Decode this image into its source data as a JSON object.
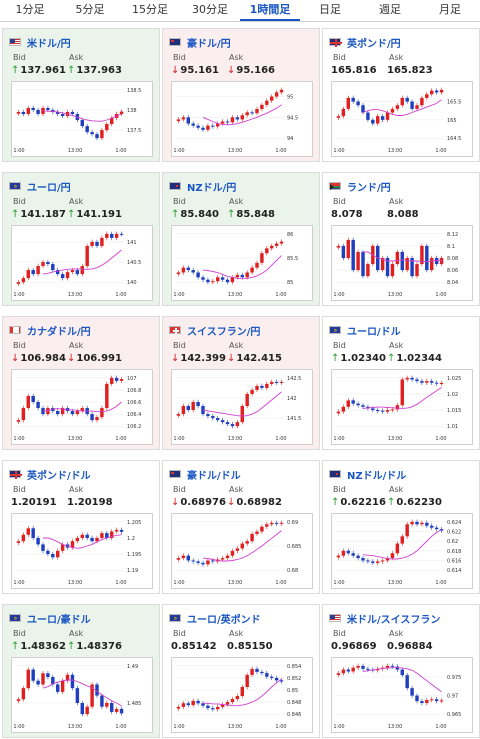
{
  "tabs": [
    "1分足",
    "5分足",
    "15分足",
    "30分足",
    "1時間足",
    "日足",
    "週足",
    "月足"
  ],
  "active_tab": 4,
  "labels": {
    "bid": "Bid",
    "ask": "Ask"
  },
  "colors": {
    "up_bg": "#eaf4ea",
    "down_bg": "#fbeeee",
    "link": "#1a56c4",
    "candle_up": "#e02020",
    "candle_down": "#1f3fbf",
    "ma": "#d040d0"
  },
  "cards": [
    {
      "pair": "米ドル/円",
      "flag": "us-flag-icon",
      "trend": "up",
      "arrow": "up",
      "bid": "137.961",
      "ask": "137.963",
      "yticks": [
        "138.5",
        "138",
        "137.5"
      ],
      "xticks": [
        "1:00",
        "13:00",
        "1:00"
      ],
      "closes": [
        137.95,
        137.9,
        138.05,
        138.0,
        137.9,
        138.05,
        138.0,
        137.95,
        137.9,
        137.85,
        137.95,
        137.9,
        137.75,
        137.6,
        137.45,
        137.4,
        137.3,
        137.5,
        137.65,
        137.8,
        137.9,
        137.96
      ],
      "ma": [
        137.98,
        137.97,
        137.96,
        137.95,
        137.93,
        137.9,
        137.86,
        137.82,
        137.78,
        137.75,
        137.73,
        137.72,
        137.72,
        137.75,
        137.8,
        137.85,
        137.9
      ]
    },
    {
      "pair": "豪ドル/円",
      "flag": "au-flag-icon",
      "trend": "down",
      "arrow": "down",
      "bid": "95.161",
      "ask": "95.166",
      "yticks": [
        "95",
        "94.5",
        "94"
      ],
      "xticks": [
        "1:00",
        "13:00",
        "1:00"
      ],
      "closes": [
        94.45,
        94.5,
        94.35,
        94.3,
        94.25,
        94.2,
        94.3,
        94.28,
        94.35,
        94.4,
        94.38,
        94.5,
        94.45,
        94.55,
        94.62,
        94.6,
        94.7,
        94.8,
        94.9,
        95.0,
        95.1,
        95.16
      ],
      "ma": [
        94.5,
        94.45,
        94.4,
        94.35,
        94.33,
        94.32,
        94.33,
        94.35,
        94.38,
        94.42,
        94.46,
        94.5,
        94.55,
        94.6,
        94.66,
        94.72,
        94.8
      ]
    },
    {
      "pair": "英ポンド/円",
      "flag": "uk-flag-icon",
      "trend": "neutral",
      "arrow": "",
      "bid": "165.816",
      "ask": "165.823",
      "yticks": [
        "165.5",
        "165",
        "164.5"
      ],
      "xticks": [
        "1:00",
        "13:00",
        "1:00"
      ],
      "closes": [
        165.1,
        165.3,
        165.6,
        165.5,
        165.4,
        165.2,
        165.0,
        164.9,
        165.1,
        165.0,
        165.2,
        165.3,
        165.4,
        165.6,
        165.5,
        165.3,
        165.4,
        165.6,
        165.7,
        165.8,
        165.75,
        165.82
      ],
      "ma": [
        165.2,
        165.25,
        165.28,
        165.28,
        165.25,
        165.2,
        165.15,
        165.12,
        165.12,
        165.15,
        165.2,
        165.25,
        165.3,
        165.35,
        165.4,
        165.45,
        165.55
      ]
    },
    {
      "pair": "ユーロ/円",
      "flag": "eu-flag-icon",
      "trend": "up",
      "arrow": "up",
      "bid": "141.187",
      "ask": "141.191",
      "yticks": [
        "141",
        "140.5",
        "140"
      ],
      "xticks": [
        "1:00",
        "13:00",
        "1:00"
      ],
      "closes": [
        140.0,
        140.1,
        140.3,
        140.2,
        140.4,
        140.5,
        140.45,
        140.3,
        140.2,
        140.1,
        140.25,
        140.3,
        140.2,
        140.4,
        140.9,
        141.0,
        140.9,
        141.1,
        141.2,
        141.1,
        141.2,
        141.19
      ],
      "ma": [
        140.2,
        140.22,
        140.25,
        140.28,
        140.3,
        140.32,
        140.33,
        140.33,
        140.32,
        140.32,
        140.33,
        140.36,
        140.42,
        140.5,
        140.6,
        140.7,
        140.8
      ]
    },
    {
      "pair": "NZドル/円",
      "flag": "nz-flag-icon",
      "trend": "up",
      "arrow": "up",
      "bid": "85.840",
      "ask": "85.848",
      "yticks": [
        "86",
        "85.5",
        "85"
      ],
      "xticks": [
        "1:00",
        "13:00",
        "1:00"
      ],
      "closes": [
        85.2,
        85.3,
        85.25,
        85.2,
        85.1,
        85.05,
        85.0,
        85.02,
        85.1,
        85.05,
        85.0,
        85.1,
        85.15,
        85.1,
        85.2,
        85.3,
        85.4,
        85.6,
        85.7,
        85.75,
        85.8,
        85.84
      ],
      "ma": [
        85.25,
        85.24,
        85.22,
        85.2,
        85.16,
        85.12,
        85.1,
        85.08,
        85.07,
        85.08,
        85.1,
        85.13,
        85.18,
        85.25,
        85.35,
        85.45,
        85.55
      ]
    },
    {
      "pair": "ランド/円",
      "flag": "za-flag-icon",
      "trend": "neutral",
      "arrow": "",
      "bid": "8.078",
      "ask": "8.088",
      "yticks": [
        "8.12",
        "8.1",
        "8.08",
        "8.06",
        "8.04"
      ],
      "xticks": [
        "1:00",
        "13:00",
        "1:00"
      ],
      "closes": [
        8.1,
        8.08,
        8.11,
        8.06,
        8.09,
        8.05,
        8.07,
        8.1,
        8.06,
        8.08,
        8.05,
        8.07,
        8.09,
        8.06,
        8.08,
        8.05,
        8.07,
        8.1,
        8.06,
        8.08,
        8.07,
        8.08
      ],
      "ma": [
        8.09,
        8.09,
        8.085,
        8.08,
        8.078,
        8.075,
        8.075,
        8.076,
        8.077,
        8.076,
        8.075,
        8.075,
        8.074,
        8.074,
        8.075,
        8.076,
        8.076
      ]
    },
    {
      "pair": "カナダドル/円",
      "flag": "ca-flag-icon",
      "trend": "down",
      "arrow": "down",
      "bid": "106.984",
      "ask": "106.991",
      "yticks": [
        "107",
        "106.8",
        "106.6",
        "106.4",
        "106.2"
      ],
      "xticks": [
        "1:00",
        "13:00",
        "1:00"
      ],
      "closes": [
        106.3,
        106.5,
        106.7,
        106.6,
        106.5,
        106.4,
        106.5,
        106.45,
        106.4,
        106.5,
        106.45,
        106.4,
        106.45,
        106.5,
        106.4,
        106.3,
        106.35,
        106.5,
        106.9,
        107.0,
        106.95,
        106.98
      ],
      "ma": [
        106.45,
        106.46,
        106.48,
        106.49,
        106.48,
        106.47,
        106.47,
        106.46,
        106.45,
        106.45,
        106.45,
        106.44,
        106.44,
        106.45,
        106.48,
        106.53,
        106.6
      ]
    },
    {
      "pair": "スイスフラン/円",
      "flag": "ch-flag-icon",
      "trend": "down",
      "arrow": "down",
      "bid": "142.399",
      "ask": "142.415",
      "yticks": [
        "142.5",
        "142",
        "141.5"
      ],
      "xticks": [
        "1:00",
        "13:00",
        "1:00"
      ],
      "closes": [
        141.6,
        141.8,
        141.7,
        141.9,
        141.8,
        141.6,
        141.55,
        141.5,
        141.45,
        141.4,
        141.35,
        141.3,
        141.4,
        141.8,
        142.1,
        142.2,
        142.3,
        142.25,
        142.35,
        142.4,
        142.38,
        142.4
      ],
      "ma": [
        141.7,
        141.68,
        141.66,
        141.64,
        141.62,
        141.6,
        141.58,
        141.56,
        141.55,
        141.56,
        141.6,
        141.66,
        141.75,
        141.85,
        141.95,
        142.05,
        142.15
      ]
    },
    {
      "pair": "ユーロ/ドル",
      "flag": "eu-flag-icon",
      "trend": "neutral",
      "arrow": "up",
      "bid": "1.02340",
      "ask": "1.02344",
      "yticks": [
        "1.025",
        "1.02",
        "1.015",
        "1.01"
      ],
      "xticks": [
        "1:00",
        "13:00",
        "1:00"
      ],
      "closes": [
        1.0145,
        1.016,
        1.018,
        1.017,
        1.0165,
        1.016,
        1.0155,
        1.015,
        1.0148,
        1.0145,
        1.015,
        1.0152,
        1.0165,
        1.0245,
        1.025,
        1.0245,
        1.024,
        1.0235,
        1.024,
        1.0235,
        1.0232,
        1.0234
      ],
      "ma": [
        1.0155,
        1.0156,
        1.0158,
        1.0159,
        1.0159,
        1.0158,
        1.0157,
        1.0156,
        1.0155,
        1.0156,
        1.016,
        1.0168,
        1.0178,
        1.019,
        1.02,
        1.021,
        1.022
      ]
    },
    {
      "pair": "英ポンド/ドル",
      "flag": "uk-flag-icon",
      "trend": "neutral",
      "arrow": "",
      "bid": "1.20191",
      "ask": "1.20198",
      "yticks": [
        "1.205",
        "1.2",
        "1.195",
        "1.19"
      ],
      "xticks": [
        "1:00",
        "13:00",
        "1:00"
      ],
      "closes": [
        1.199,
        1.201,
        1.203,
        1.2,
        1.198,
        1.196,
        1.195,
        1.194,
        1.196,
        1.198,
        1.197,
        1.199,
        1.2,
        1.201,
        1.2,
        1.199,
        1.2,
        1.2015,
        1.2,
        1.202,
        1.2025,
        1.2019
      ],
      "ma": [
        1.2,
        1.2,
        1.1995,
        1.1988,
        1.198,
        1.1975,
        1.197,
        1.1968,
        1.197,
        1.1975,
        1.198,
        1.1988,
        1.1995,
        1.2,
        1.2005,
        1.2008,
        1.201
      ]
    },
    {
      "pair": "豪ドル/ドル",
      "flag": "au-flag-icon",
      "trend": "neutral",
      "arrow": "down",
      "bid": "0.68976",
      "ask": "0.68982",
      "yticks": [
        "0.69",
        "0.685",
        "0.68"
      ],
      "xticks": [
        "1:00",
        "13:00",
        "1:00"
      ],
      "closes": [
        0.6825,
        0.683,
        0.682,
        0.6818,
        0.6815,
        0.6812,
        0.682,
        0.6818,
        0.6822,
        0.6825,
        0.683,
        0.684,
        0.6845,
        0.6855,
        0.686,
        0.6875,
        0.688,
        0.689,
        0.6895,
        0.6898,
        0.6896,
        0.6898
      ],
      "ma": [
        0.6825,
        0.6824,
        0.6822,
        0.682,
        0.6819,
        0.6819,
        0.682,
        0.6822,
        0.6825,
        0.683,
        0.6836,
        0.6843,
        0.685,
        0.6858,
        0.6866,
        0.6874,
        0.6882
      ]
    },
    {
      "pair": "NZドル/ドル",
      "flag": "nz-flag-icon",
      "trend": "neutral",
      "arrow": "up",
      "bid": "0.62216",
      "ask": "0.62230",
      "yticks": [
        "0.624",
        "0.622",
        "0.62",
        "0.618",
        "0.616",
        "0.614"
      ],
      "xticks": [
        "1:00",
        "13:00",
        "1:00"
      ],
      "closes": [
        0.617,
        0.618,
        0.6175,
        0.617,
        0.6165,
        0.616,
        0.6158,
        0.6155,
        0.6158,
        0.616,
        0.6165,
        0.6175,
        0.6195,
        0.621,
        0.6235,
        0.624,
        0.6235,
        0.6238,
        0.6232,
        0.6228,
        0.6225,
        0.6222
      ],
      "ma": [
        0.6172,
        0.6171,
        0.617,
        0.6168,
        0.6166,
        0.6164,
        0.6163,
        0.6163,
        0.6165,
        0.6168,
        0.6173,
        0.618,
        0.619,
        0.62,
        0.621,
        0.6218,
        0.6224
      ]
    },
    {
      "pair": "ユーロ/豪ドル",
      "flag": "eu-flag-icon",
      "trend": "up",
      "arrow": "up",
      "bid": "1.48362",
      "ask": "1.48376",
      "yticks": [
        "1.49",
        "1.485"
      ],
      "xticks": [
        "1:00",
        "13:00",
        "1:00"
      ],
      "closes": [
        1.4855,
        1.487,
        1.4895,
        1.488,
        1.4875,
        1.489,
        1.4885,
        1.4875,
        1.4865,
        1.488,
        1.4888,
        1.487,
        1.485,
        1.4835,
        1.4845,
        1.4875,
        1.486,
        1.4845,
        1.485,
        1.4838,
        1.4842,
        1.4836
      ],
      "ma": [
        1.487,
        1.4872,
        1.4876,
        1.4878,
        1.488,
        1.4881,
        1.4881,
        1.4879,
        1.4876,
        1.4873,
        1.487,
        1.4866,
        1.4861,
        1.4857,
        1.4853,
        1.485,
        1.4846
      ]
    },
    {
      "pair": "ユーロ/英ポンド",
      "flag": "eu-flag-icon",
      "trend": "neutral",
      "arrow": "",
      "bid": "0.85142",
      "ask": "0.85150",
      "yticks": [
        "0.854",
        "0.852",
        "0.85",
        "0.848",
        "0.846"
      ],
      "xticks": [
        "1:00",
        "13:00",
        "1:00"
      ],
      "closes": [
        0.8472,
        0.8478,
        0.8475,
        0.8482,
        0.8478,
        0.8474,
        0.847,
        0.8468,
        0.8472,
        0.8476,
        0.848,
        0.8485,
        0.849,
        0.8505,
        0.8525,
        0.8535,
        0.853,
        0.8528,
        0.8522,
        0.852,
        0.8516,
        0.8514
      ],
      "ma": [
        0.8478,
        0.8478,
        0.8477,
        0.8477,
        0.8476,
        0.8475,
        0.8474,
        0.8474,
        0.8475,
        0.8477,
        0.848,
        0.8484,
        0.849,
        0.8497,
        0.8505,
        0.8512,
        0.8518
      ]
    },
    {
      "pair": "米ドル/スイスフラン",
      "flag": "us-flag-icon",
      "trend": "neutral",
      "arrow": "",
      "bid": "0.96869",
      "ask": "0.96884",
      "yticks": [
        "0.975",
        "0.97",
        "0.965"
      ],
      "xticks": [
        "1:00",
        "13:00",
        "1:00"
      ],
      "closes": [
        0.976,
        0.977,
        0.9765,
        0.9775,
        0.978,
        0.9772,
        0.977,
        0.9768,
        0.9772,
        0.9775,
        0.978,
        0.9778,
        0.977,
        0.9755,
        0.972,
        0.97,
        0.9685,
        0.968,
        0.9688,
        0.969,
        0.9685,
        0.9687
      ],
      "ma": [
        0.9765,
        0.9767,
        0.9769,
        0.9771,
        0.9773,
        0.9774,
        0.9775,
        0.9775,
        0.9774,
        0.9772,
        0.9768,
        0.976,
        0.975,
        0.974,
        0.973,
        0.972,
        0.971
      ]
    }
  ]
}
